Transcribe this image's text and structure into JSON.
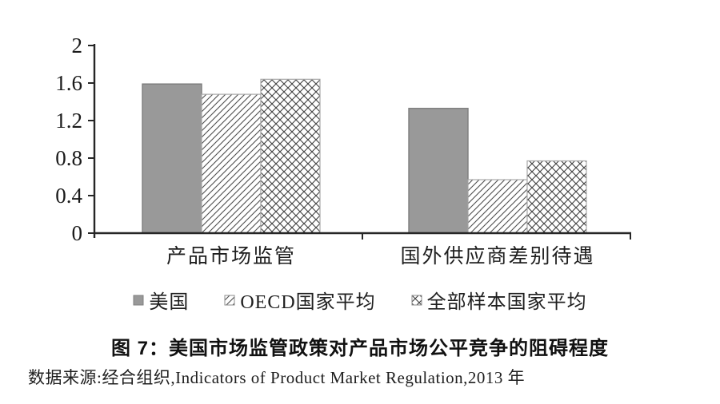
{
  "figure": {
    "title": "图 7：美国市场监管政策对产品市场公平竞争的阻碍程度",
    "source": "数据来源:经合组织,Indicators of Product Market Regulation,2013 年"
  },
  "chart_data": {
    "type": "bar",
    "categories": [
      "产品市场监管",
      "国外供应商差别待遇"
    ],
    "series": [
      {
        "name": "美国",
        "style": "solid-gray",
        "values": [
          1.59,
          1.33
        ]
      },
      {
        "name": "OECD国家平均",
        "style": "diagonal-hatch",
        "values": [
          1.48,
          0.57
        ]
      },
      {
        "name": "全部样本国家平均",
        "style": "cross-hatch",
        "values": [
          1.64,
          0.77
        ]
      }
    ],
    "ylim": [
      0,
      2
    ],
    "yticks": [
      "0",
      "0.4",
      "0.8",
      "1.2",
      "1.6",
      "2"
    ],
    "ytick_values": [
      0,
      0.4,
      0.8,
      1.2,
      1.6,
      2
    ],
    "grid": false,
    "legend_position": "bottom",
    "colors": {
      "bar_gray": "#999999",
      "hatch_line": "#4d4d4d",
      "axis": "#262626"
    }
  }
}
